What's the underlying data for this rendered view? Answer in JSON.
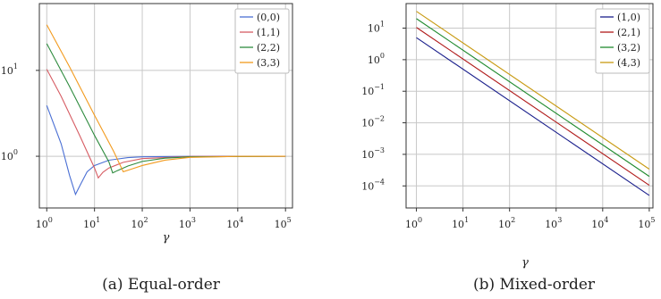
{
  "chart_data": [
    {
      "type": "line",
      "caption": "(a) Equal-order",
      "xlabel": "γ",
      "ylabel": "",
      "xscale": "log",
      "yscale": "log",
      "xlim": [
        0.7,
        140000
      ],
      "ylim": [
        0.25,
        60
      ],
      "grid": true,
      "legend_position": "top-right",
      "xticks": [
        {
          "v": 1,
          "e": "0"
        },
        {
          "v": 10,
          "e": "1"
        },
        {
          "v": 100,
          "e": "2"
        },
        {
          "v": 1000,
          "e": "3"
        },
        {
          "v": 10000,
          "e": "4"
        },
        {
          "v": 100000,
          "e": "5"
        }
      ],
      "yticks": [
        {
          "v": 1,
          "e": "0"
        },
        {
          "v": 10,
          "e": "1"
        }
      ],
      "series": [
        {
          "name": "(0,0)",
          "color": "#4a6fd4",
          "points": [
            [
              1,
              3.9
            ],
            [
              2,
              1.4
            ],
            [
              3,
              0.6
            ],
            [
              4,
              0.36
            ],
            [
              5,
              0.46
            ],
            [
              7,
              0.66
            ],
            [
              10,
              0.78
            ],
            [
              20,
              0.9
            ],
            [
              50,
              0.965
            ],
            [
              100,
              0.985
            ],
            [
              1000,
              0.998
            ],
            [
              100000,
              1.0
            ]
          ]
        },
        {
          "name": "(1,1)",
          "color": "#d65c63",
          "points": [
            [
              1,
              10.3
            ],
            [
              2,
              5.0
            ],
            [
              5,
              1.7
            ],
            [
              10,
              0.73
            ],
            [
              12,
              0.56
            ],
            [
              15,
              0.65
            ],
            [
              20,
              0.73
            ],
            [
              40,
              0.85
            ],
            [
              100,
              0.94
            ],
            [
              1000,
              0.995
            ],
            [
              100000,
              1.0
            ]
          ]
        },
        {
          "name": "(2,2)",
          "color": "#2e8b3e",
          "points": [
            [
              1,
              20.5
            ],
            [
              3,
              6.5
            ],
            [
              10,
              1.75
            ],
            [
              20,
              0.86
            ],
            [
              24,
              0.64
            ],
            [
              30,
              0.68
            ],
            [
              50,
              0.77
            ],
            [
              100,
              0.87
            ],
            [
              300,
              0.95
            ],
            [
              1000,
              0.985
            ],
            [
              100000,
              1.0
            ]
          ]
        },
        {
          "name": "(3,3)",
          "color": "#f29a1d",
          "points": [
            [
              1,
              34
            ],
            [
              3,
              11
            ],
            [
              10,
              3.0
            ],
            [
              25,
              1.15
            ],
            [
              40,
              0.66
            ],
            [
              60,
              0.71
            ],
            [
              100,
              0.78
            ],
            [
              300,
              0.9
            ],
            [
              1000,
              0.97
            ],
            [
              10000,
              0.997
            ],
            [
              100000,
              1.0
            ]
          ]
        }
      ]
    },
    {
      "type": "line",
      "caption": "(b) Mixed-order",
      "xlabel": "γ",
      "ylabel": "",
      "xscale": "log",
      "yscale": "log",
      "xlim": [
        0.6,
        120000
      ],
      "ylim": [
        2e-05,
        60
      ],
      "grid": true,
      "legend_position": "top-right",
      "xticks": [
        {
          "v": 1,
          "e": "0"
        },
        {
          "v": 10,
          "e": "1"
        },
        {
          "v": 100,
          "e": "2"
        },
        {
          "v": 1000,
          "e": "3"
        },
        {
          "v": 10000,
          "e": "4"
        },
        {
          "v": 100000,
          "e": "5"
        }
      ],
      "yticks": [
        {
          "v": 0.0001,
          "e": "−4"
        },
        {
          "v": 0.001,
          "e": "−3"
        },
        {
          "v": 0.01,
          "e": "−2"
        },
        {
          "v": 0.1,
          "e": "−1"
        },
        {
          "v": 1,
          "e": "0"
        },
        {
          "v": 10,
          "e": "1"
        }
      ],
      "series": [
        {
          "name": "(1,0)",
          "color": "#1a1f8c",
          "points": [
            [
              1,
              5.0
            ],
            [
              100000,
              5e-05
            ]
          ]
        },
        {
          "name": "(2,1)",
          "color": "#b01a1a",
          "points": [
            [
              1,
              10.5
            ],
            [
              100000,
              0.000105
            ]
          ]
        },
        {
          "name": "(3,2)",
          "color": "#1f8a2e",
          "points": [
            [
              1,
              20.0
            ],
            [
              100000,
              0.0002
            ]
          ]
        },
        {
          "name": "(4,3)",
          "color": "#c89a12",
          "points": [
            [
              1,
              34.0
            ],
            [
              100000,
              0.00034
            ]
          ]
        }
      ]
    }
  ]
}
